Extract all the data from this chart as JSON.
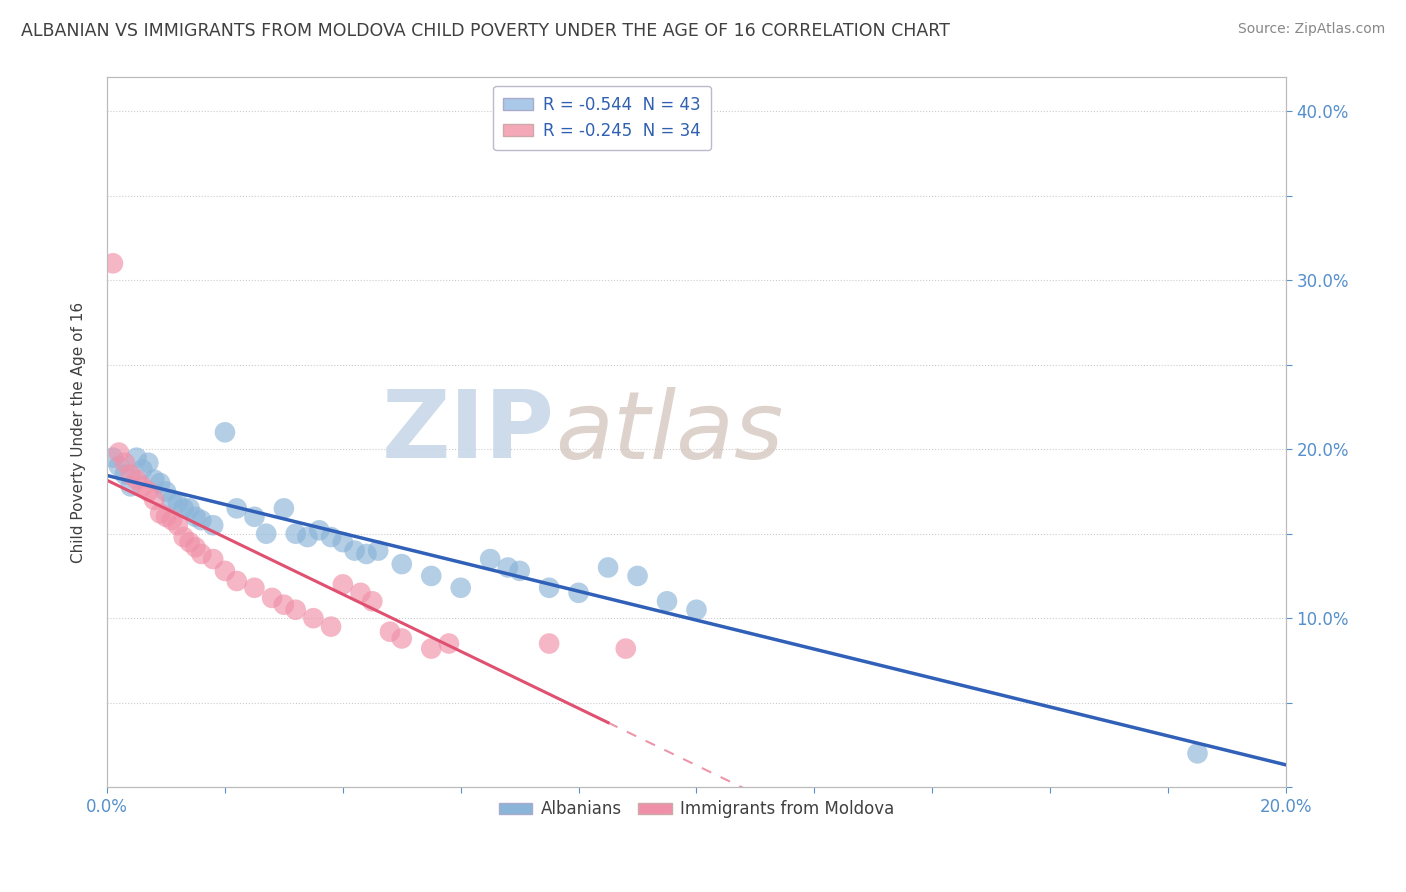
{
  "title": "ALBANIAN VS IMMIGRANTS FROM MOLDOVA CHILD POVERTY UNDER THE AGE OF 16 CORRELATION CHART",
  "source": "Source: ZipAtlas.com",
  "ylabel": "Child Poverty Under the Age of 16",
  "xlim": [
    0.0,
    0.2
  ],
  "ylim": [
    0.0,
    0.42
  ],
  "xticks": [
    0.0,
    0.02,
    0.04,
    0.06,
    0.08,
    0.1,
    0.12,
    0.14,
    0.16,
    0.18,
    0.2
  ],
  "yticks": [
    0.0,
    0.05,
    0.1,
    0.15,
    0.2,
    0.25,
    0.3,
    0.35,
    0.4
  ],
  "right_ytick_labels": [
    "",
    "",
    "10.0%",
    "",
    "20.0%",
    "",
    "30.0%",
    "",
    "40.0%"
  ],
  "xtick_labels": [
    "0.0%",
    "",
    "",
    "",
    "",
    "",
    "",
    "",
    "",
    "",
    "20.0%"
  ],
  "legend_entries": [
    {
      "label": "R = -0.544  N = 43",
      "color": "#aac8e8"
    },
    {
      "label": "R = -0.245  N = 34",
      "color": "#f4a8b8"
    }
  ],
  "albanian_scatter": [
    [
      0.001,
      0.195
    ],
    [
      0.002,
      0.19
    ],
    [
      0.003,
      0.185
    ],
    [
      0.004,
      0.178
    ],
    [
      0.005,
      0.195
    ],
    [
      0.006,
      0.188
    ],
    [
      0.007,
      0.192
    ],
    [
      0.008,
      0.182
    ],
    [
      0.009,
      0.18
    ],
    [
      0.01,
      0.175
    ],
    [
      0.011,
      0.17
    ],
    [
      0.012,
      0.168
    ],
    [
      0.013,
      0.165
    ],
    [
      0.014,
      0.165
    ],
    [
      0.015,
      0.16
    ],
    [
      0.016,
      0.158
    ],
    [
      0.018,
      0.155
    ],
    [
      0.02,
      0.21
    ],
    [
      0.022,
      0.165
    ],
    [
      0.025,
      0.16
    ],
    [
      0.027,
      0.15
    ],
    [
      0.03,
      0.165
    ],
    [
      0.032,
      0.15
    ],
    [
      0.034,
      0.148
    ],
    [
      0.036,
      0.152
    ],
    [
      0.038,
      0.148
    ],
    [
      0.04,
      0.145
    ],
    [
      0.042,
      0.14
    ],
    [
      0.044,
      0.138
    ],
    [
      0.046,
      0.14
    ],
    [
      0.05,
      0.132
    ],
    [
      0.055,
      0.125
    ],
    [
      0.06,
      0.118
    ],
    [
      0.065,
      0.135
    ],
    [
      0.068,
      0.13
    ],
    [
      0.07,
      0.128
    ],
    [
      0.075,
      0.118
    ],
    [
      0.08,
      0.115
    ],
    [
      0.085,
      0.13
    ],
    [
      0.09,
      0.125
    ],
    [
      0.095,
      0.11
    ],
    [
      0.1,
      0.105
    ],
    [
      0.185,
      0.02
    ]
  ],
  "moldova_scatter": [
    [
      0.001,
      0.31
    ],
    [
      0.002,
      0.198
    ],
    [
      0.003,
      0.192
    ],
    [
      0.004,
      0.185
    ],
    [
      0.005,
      0.182
    ],
    [
      0.006,
      0.178
    ],
    [
      0.007,
      0.175
    ],
    [
      0.008,
      0.17
    ],
    [
      0.009,
      0.162
    ],
    [
      0.01,
      0.16
    ],
    [
      0.011,
      0.158
    ],
    [
      0.012,
      0.155
    ],
    [
      0.013,
      0.148
    ],
    [
      0.014,
      0.145
    ],
    [
      0.015,
      0.142
    ],
    [
      0.016,
      0.138
    ],
    [
      0.018,
      0.135
    ],
    [
      0.02,
      0.128
    ],
    [
      0.022,
      0.122
    ],
    [
      0.025,
      0.118
    ],
    [
      0.028,
      0.112
    ],
    [
      0.03,
      0.108
    ],
    [
      0.032,
      0.105
    ],
    [
      0.035,
      0.1
    ],
    [
      0.038,
      0.095
    ],
    [
      0.04,
      0.12
    ],
    [
      0.043,
      0.115
    ],
    [
      0.045,
      0.11
    ],
    [
      0.048,
      0.092
    ],
    [
      0.05,
      0.088
    ],
    [
      0.055,
      0.082
    ],
    [
      0.058,
      0.085
    ],
    [
      0.075,
      0.085
    ],
    [
      0.088,
      0.082
    ]
  ],
  "albanian_color": "#8ab4d8",
  "moldova_color": "#f090a8",
  "albanian_line_color": "#3060b8",
  "moldova_line_color": "#e05070",
  "watermark_zip_color": "#c8d8e8",
  "watermark_atlas_color": "#d0c0b8",
  "background_color": "#ffffff",
  "grid_color": "#cccccc",
  "title_color": "#404040",
  "tick_color": "#5590cc",
  "source_color": "#888888"
}
